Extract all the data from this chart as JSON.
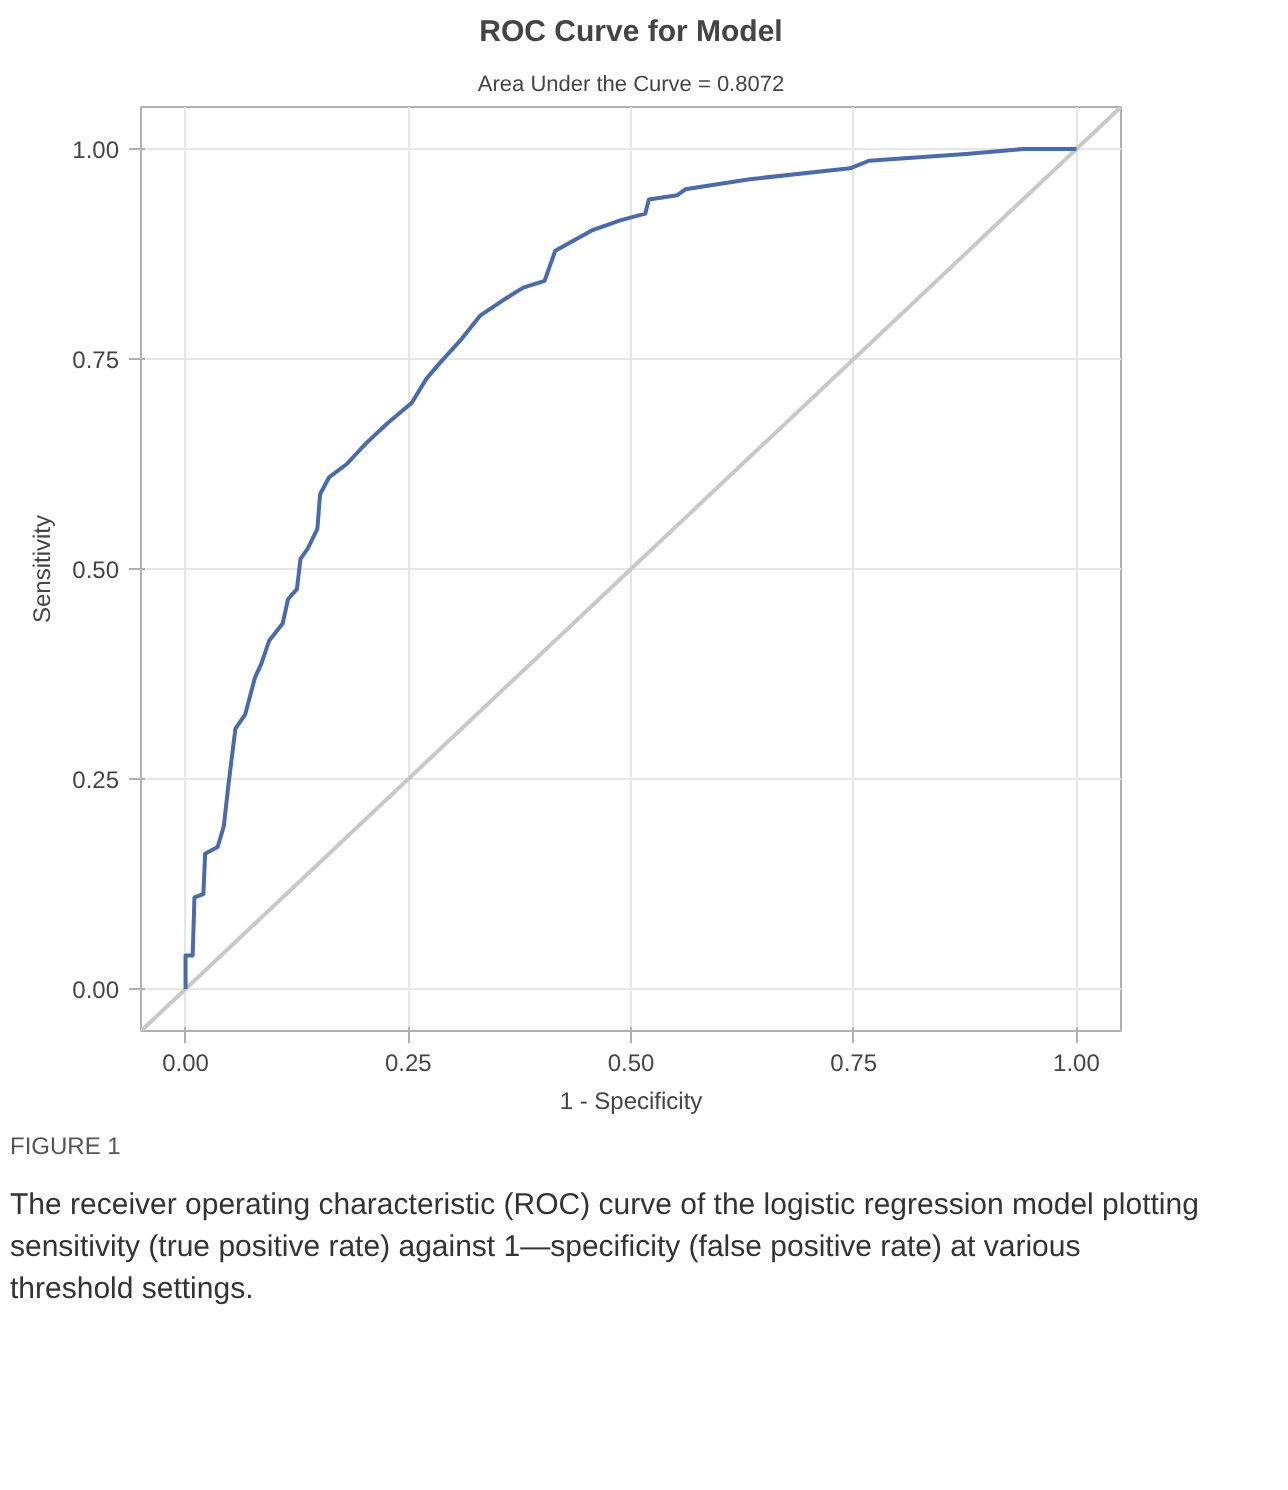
{
  "chart_data": {
    "type": "line",
    "title": "ROC Curve for Model",
    "subtitle": "Area Under the Curve = 0.8072",
    "xlabel": "1 - Specificity",
    "ylabel": "Sensitivity",
    "xlim": [
      -0.05,
      1.05
    ],
    "ylim": [
      -0.05,
      1.05
    ],
    "xticks": [
      {
        "value": 0,
        "label": "0.00"
      },
      {
        "value": 0.25,
        "label": "0.25"
      },
      {
        "value": 0.5,
        "label": "0.50"
      },
      {
        "value": 0.75,
        "label": "0.75"
      },
      {
        "value": 1,
        "label": "1.00"
      }
    ],
    "yticks": [
      {
        "value": 0,
        "label": "0.00"
      },
      {
        "value": 0.25,
        "label": "0.25"
      },
      {
        "value": 0.5,
        "label": "0.50"
      },
      {
        "value": 0.75,
        "label": "0.75"
      },
      {
        "value": 1,
        "label": "1.00"
      }
    ],
    "grid": true,
    "line_style": "solid",
    "series": [
      {
        "color": "#c8c8c8",
        "x": [
          -0.05,
          1.05
        ],
        "values": [
          -0.05,
          1.05
        ]
      },
      {
        "color": "#4a6aa8",
        "x": [
          0,
          0,
          0.008,
          0.01,
          0.02,
          0.022,
          0.036,
          0.043,
          0.048,
          0.056,
          0.067,
          0.078,
          0.085,
          0.094,
          0.109,
          0.115,
          0.125,
          0.129,
          0.137,
          0.148,
          0.151,
          0.161,
          0.181,
          0.202,
          0.226,
          0.254,
          0.27,
          0.286,
          0.31,
          0.331,
          0.355,
          0.379,
          0.403,
          0.415,
          0.456,
          0.488,
          0.516,
          0.52,
          0.552,
          0.561,
          0.633,
          0.746,
          0.767,
          0.876,
          0.94,
          1.0
        ],
        "values": [
          0,
          0.04,
          0.04,
          0.109,
          0.113,
          0.161,
          0.169,
          0.194,
          0.242,
          0.31,
          0.327,
          0.371,
          0.387,
          0.415,
          0.435,
          0.464,
          0.476,
          0.512,
          0.524,
          0.548,
          0.589,
          0.609,
          0.625,
          0.649,
          0.673,
          0.698,
          0.726,
          0.746,
          0.774,
          0.802,
          0.819,
          0.835,
          0.843,
          0.879,
          0.903,
          0.915,
          0.923,
          0.94,
          0.945,
          0.952,
          0.964,
          0.977,
          0.986,
          0.994,
          1.0,
          1.0
        ]
      }
    ],
    "annotations": [
      "FIGURE 1",
      "The receiver operating characteristic (ROC) curve of the logistic regression model plotting sensitivity (true positive rate) against 1—specificity (false positive rate) at various threshold settings."
    ]
  }
}
